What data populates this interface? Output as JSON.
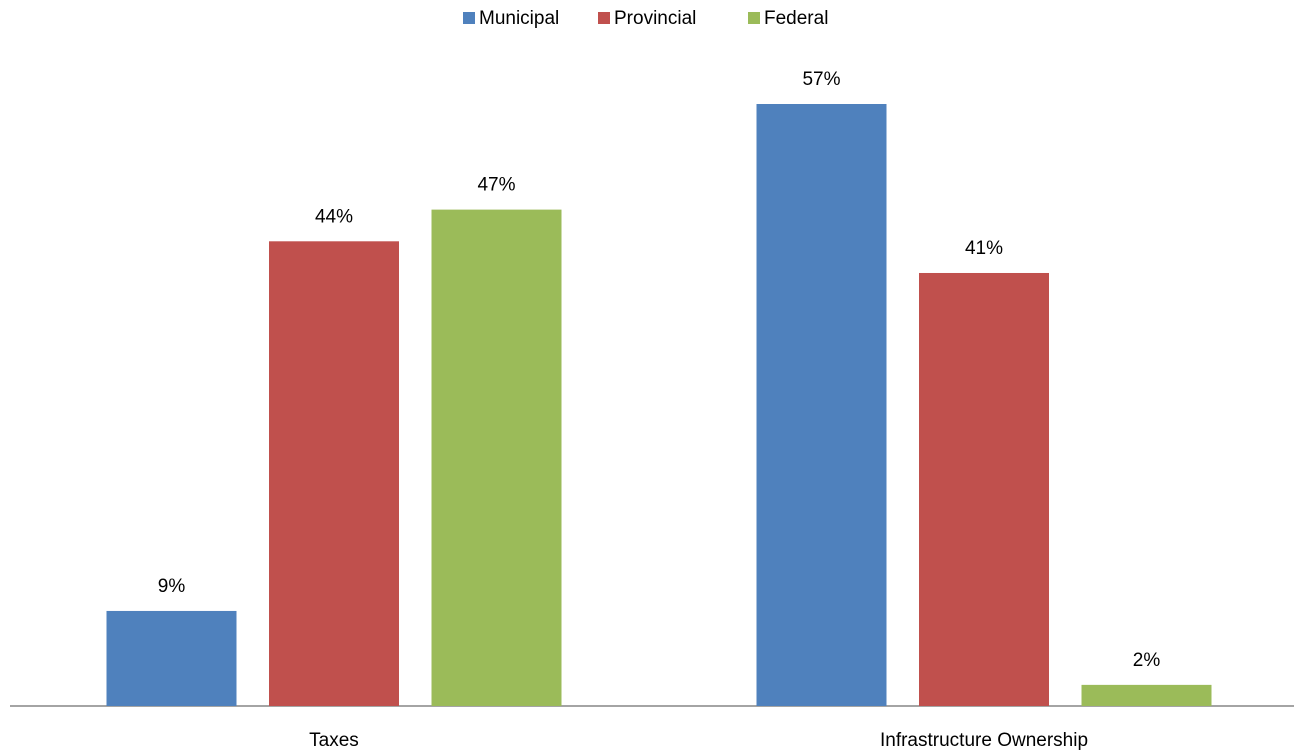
{
  "chart_data": {
    "type": "bar",
    "categories": [
      "Taxes",
      "Infrastructure Ownership"
    ],
    "series": [
      {
        "name": "Municipal",
        "color": "#4f81bd",
        "values": [
          9,
          57
        ],
        "value_labels": [
          "9%",
          "57%"
        ]
      },
      {
        "name": "Provincial",
        "color": "#c0504d",
        "values": [
          44,
          41
        ],
        "value_labels": [
          "44%",
          "41%"
        ]
      },
      {
        "name": "Federal",
        "color": "#9bbb59",
        "values": [
          47,
          2
        ],
        "value_labels": [
          "47%",
          "2%"
        ]
      }
    ],
    "legend": "top"
  }
}
